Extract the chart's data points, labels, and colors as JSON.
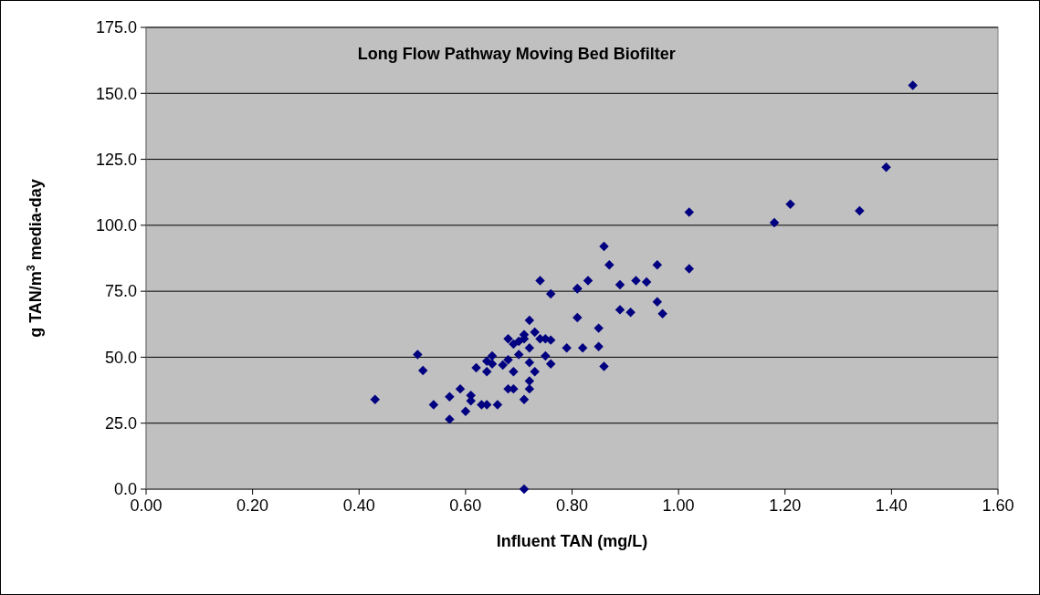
{
  "chart_data": {
    "type": "scatter",
    "title": "Long Flow Pathway Moving Bed Biofilter",
    "xlabel": "Influent TAN (mg/L)",
    "ylabel": "g TAN/m$^{3}$ media-day",
    "xlim": [
      0,
      1.6
    ],
    "xticks": [
      {
        "value": 0,
        "label": "0.00"
      },
      {
        "value": 0.2,
        "label": "0.20"
      },
      {
        "value": 0.4,
        "label": "0.40"
      },
      {
        "value": 0.6,
        "label": "0.60"
      },
      {
        "value": 0.8,
        "label": "0.80"
      },
      {
        "value": 1,
        "label": "1.00"
      },
      {
        "value": 1.2,
        "label": "1.20"
      },
      {
        "value": 1.4,
        "label": "1.40"
      },
      {
        "value": 1.6,
        "label": "1.60"
      }
    ],
    "ylim": [
      0,
      175
    ],
    "yticks": [
      {
        "value": 0,
        "label": "0.0"
      },
      {
        "value": 25,
        "label": "25.0"
      },
      {
        "value": 50,
        "label": "50.0"
      },
      {
        "value": 75,
        "label": "75.0"
      },
      {
        "value": 100,
        "label": "100.0"
      },
      {
        "value": 125,
        "label": "125.0"
      },
      {
        "value": 150,
        "label": "150.0"
      },
      {
        "value": 175,
        "label": "175.0"
      }
    ],
    "grid": "y",
    "marker": "diamond",
    "series": [
      {
        "color": "#000080",
        "x": [
          0.43,
          0.51,
          0.52,
          0.54,
          0.57,
          0.57,
          0.59,
          0.6,
          0.61,
          0.61,
          0.62,
          0.63,
          0.64,
          0.64,
          0.64,
          0.65,
          0.65,
          0.66,
          0.67,
          0.68,
          0.68,
          0.68,
          0.69,
          0.69,
          0.69,
          0.7,
          0.7,
          0.71,
          0.71,
          0.71,
          0.71,
          0.72,
          0.72,
          0.72,
          0.73,
          0.73,
          0.72,
          0.72,
          0.74,
          0.75,
          0.76,
          0.75,
          0.76,
          0.79,
          0.81,
          0.82,
          1.02,
          0.86,
          0.87,
          0.96,
          1.02,
          0.83,
          0.81,
          0.89,
          0.92,
          0.94,
          0.76,
          0.96,
          0.89,
          0.91,
          0.97,
          0.85,
          0.85,
          0.86,
          1.18,
          1.21,
          1.34,
          1.39,
          1.44,
          0.74,
          0.81
        ],
        "values": [
          34,
          51,
          45,
          32,
          35,
          26.5,
          38,
          29.5,
          35.5,
          33.5,
          46,
          32,
          32,
          48.5,
          44.5,
          50.5,
          47.5,
          32,
          47,
          49,
          57,
          38,
          44.5,
          38,
          55,
          56,
          51,
          58.5,
          57,
          34,
          0,
          64,
          53.5,
          48,
          59.5,
          44.5,
          41,
          38,
          57,
          57,
          56.5,
          50.5,
          47.5,
          53.5,
          76,
          53.5,
          105,
          92,
          85,
          85,
          83.5,
          79,
          76,
          77.5,
          79,
          78.5,
          74,
          71,
          68,
          67,
          66.5,
          61,
          54,
          46.5,
          101,
          108,
          105.5,
          122,
          153,
          79,
          65
        ]
      }
    ]
  }
}
